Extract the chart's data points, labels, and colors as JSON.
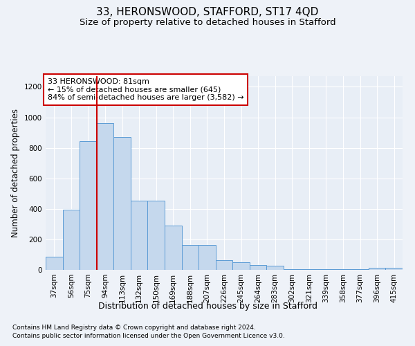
{
  "title1": "33, HERONSWOOD, STAFFORD, ST17 4QD",
  "title2": "Size of property relative to detached houses in Stafford",
  "xlabel": "Distribution of detached houses by size in Stafford",
  "ylabel": "Number of detached properties",
  "footnote1": "Contains HM Land Registry data © Crown copyright and database right 2024.",
  "footnote2": "Contains public sector information licensed under the Open Government Licence v3.0.",
  "annotation_title": "33 HERONSWOOD: 81sqm",
  "annotation_line1": "← 15% of detached houses are smaller (645)",
  "annotation_line2": "84% of semi-detached houses are larger (3,582) →",
  "bar_color": "#c5d8ed",
  "bar_edge_color": "#5b9bd5",
  "vline_color": "#cc0000",
  "vline_x_idx": 2,
  "categories": [
    "37sqm",
    "56sqm",
    "75sqm",
    "94sqm",
    "113sqm",
    "132sqm",
    "150sqm",
    "169sqm",
    "188sqm",
    "207sqm",
    "226sqm",
    "245sqm",
    "264sqm",
    "283sqm",
    "302sqm",
    "321sqm",
    "339sqm",
    "358sqm",
    "377sqm",
    "396sqm",
    "415sqm"
  ],
  "values": [
    85,
    395,
    845,
    960,
    870,
    455,
    455,
    290,
    165,
    165,
    65,
    50,
    30,
    27,
    5,
    5,
    5,
    5,
    5,
    12,
    12
  ],
  "ylim": [
    0,
    1270
  ],
  "yticks": [
    0,
    200,
    400,
    600,
    800,
    1000,
    1200
  ],
  "background_color": "#eef2f8",
  "plot_bg_color": "#e8eef6",
  "grid_color": "#ffffff",
  "title1_fontsize": 11,
  "title2_fontsize": 9.5,
  "xlabel_fontsize": 9,
  "ylabel_fontsize": 8.5,
  "tick_fontsize": 7.5,
  "annotation_fontsize": 8,
  "footnote_fontsize": 6.5,
  "annotation_box_color": "#ffffff",
  "annotation_border_color": "#cc0000"
}
